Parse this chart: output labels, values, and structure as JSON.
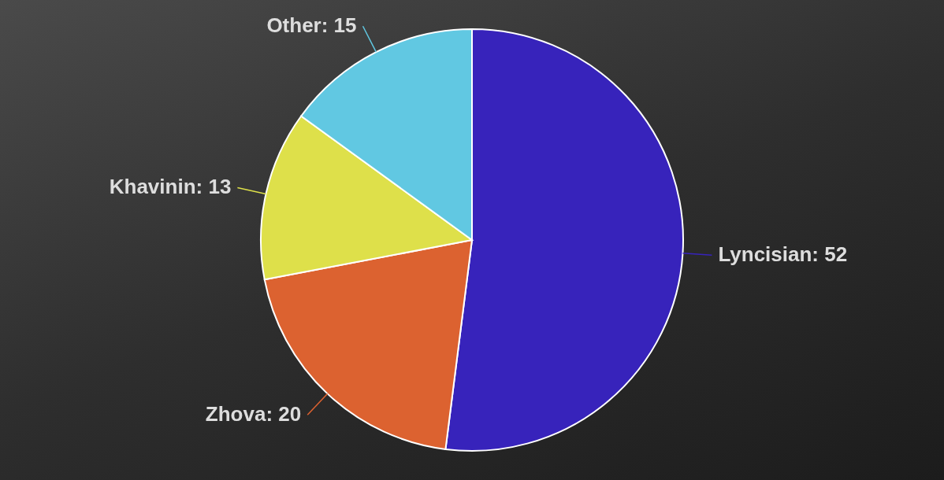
{
  "chart_data": {
    "type": "pie",
    "categories": [
      "Lyncisian",
      "Zhova",
      "Khavinin",
      "Other"
    ],
    "values": [
      52,
      20,
      13,
      15
    ],
    "value_labels": [
      ": 52",
      ": 20",
      ": 13",
      ": 15"
    ],
    "colors": [
      "#3723bb",
      "#dc6230",
      "#dee04a",
      "#61c8e2"
    ]
  }
}
